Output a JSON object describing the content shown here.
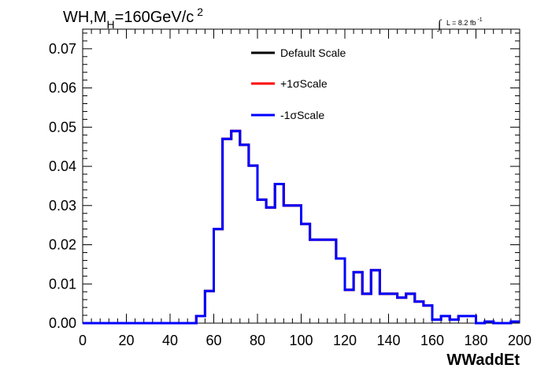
{
  "chart_data": {
    "type": "histogram",
    "title_main": "WH,M",
    "title_sub": "H",
    "title_rest": "=160GeV/c",
    "title_sup": "2",
    "lumi_label": "L = 8.2 fb",
    "lumi_sup": "-1",
    "xlabel": "WWaddEt",
    "ylabel": "",
    "xlim": [
      0,
      200
    ],
    "ylim": [
      0,
      0.075
    ],
    "xticks": [
      "0",
      "20",
      "40",
      "60",
      "80",
      "100",
      "120",
      "140",
      "160",
      "180",
      "200"
    ],
    "yticks": [
      "0.00",
      "0.01",
      "0.02",
      "0.03",
      "0.04",
      "0.05",
      "0.06",
      "0.07"
    ],
    "bin_width": 4,
    "bin_edges_start": 0,
    "legend_position": "top-center",
    "series": [
      {
        "name": "Default Scale",
        "color": "#000000",
        "values": [
          0,
          0,
          0,
          0,
          0,
          0,
          0,
          0,
          0,
          0,
          0,
          0,
          0,
          0.0018,
          0.0082,
          0.024,
          0.047,
          0.049,
          0.0455,
          0.0402,
          0.0315,
          0.0295,
          0.0355,
          0.03,
          0.03,
          0.0253,
          0.0213,
          0.0213,
          0.0213,
          0.0165,
          0.0085,
          0.013,
          0.0075,
          0.0135,
          0.0075,
          0.0075,
          0.0065,
          0.0075,
          0.0055,
          0.0045,
          0.0009,
          0.0018,
          0.0009,
          0.0018,
          0.0018,
          0,
          0.0004,
          0,
          0,
          0.0004
        ]
      },
      {
        "name": "+1σScale",
        "color": "#ff0000",
        "values": [
          0,
          0,
          0,
          0,
          0,
          0,
          0,
          0,
          0,
          0,
          0,
          0,
          0,
          0.0018,
          0.0082,
          0.024,
          0.047,
          0.049,
          0.0455,
          0.0402,
          0.0315,
          0.0295,
          0.0355,
          0.03,
          0.03,
          0.0253,
          0.0213,
          0.0213,
          0.0213,
          0.0165,
          0.0085,
          0.013,
          0.0075,
          0.0135,
          0.0075,
          0.0075,
          0.0065,
          0.0075,
          0.0055,
          0.0045,
          0.0009,
          0.0018,
          0.0009,
          0.0018,
          0.0018,
          0,
          0.0004,
          0,
          0,
          0.0004
        ]
      },
      {
        "name": "-1σScale",
        "color": "#0000ff",
        "values": [
          0,
          0,
          0,
          0,
          0,
          0,
          0,
          0,
          0,
          0,
          0,
          0,
          0,
          0.0018,
          0.0082,
          0.024,
          0.047,
          0.049,
          0.0455,
          0.0402,
          0.0315,
          0.0295,
          0.0355,
          0.03,
          0.03,
          0.0253,
          0.0213,
          0.0213,
          0.0213,
          0.0165,
          0.0085,
          0.013,
          0.0075,
          0.0135,
          0.0075,
          0.0075,
          0.0065,
          0.0075,
          0.0055,
          0.0045,
          0.0009,
          0.0018,
          0.0009,
          0.0018,
          0.0018,
          0,
          0.0004,
          0,
          0,
          0.0004
        ]
      }
    ]
  }
}
